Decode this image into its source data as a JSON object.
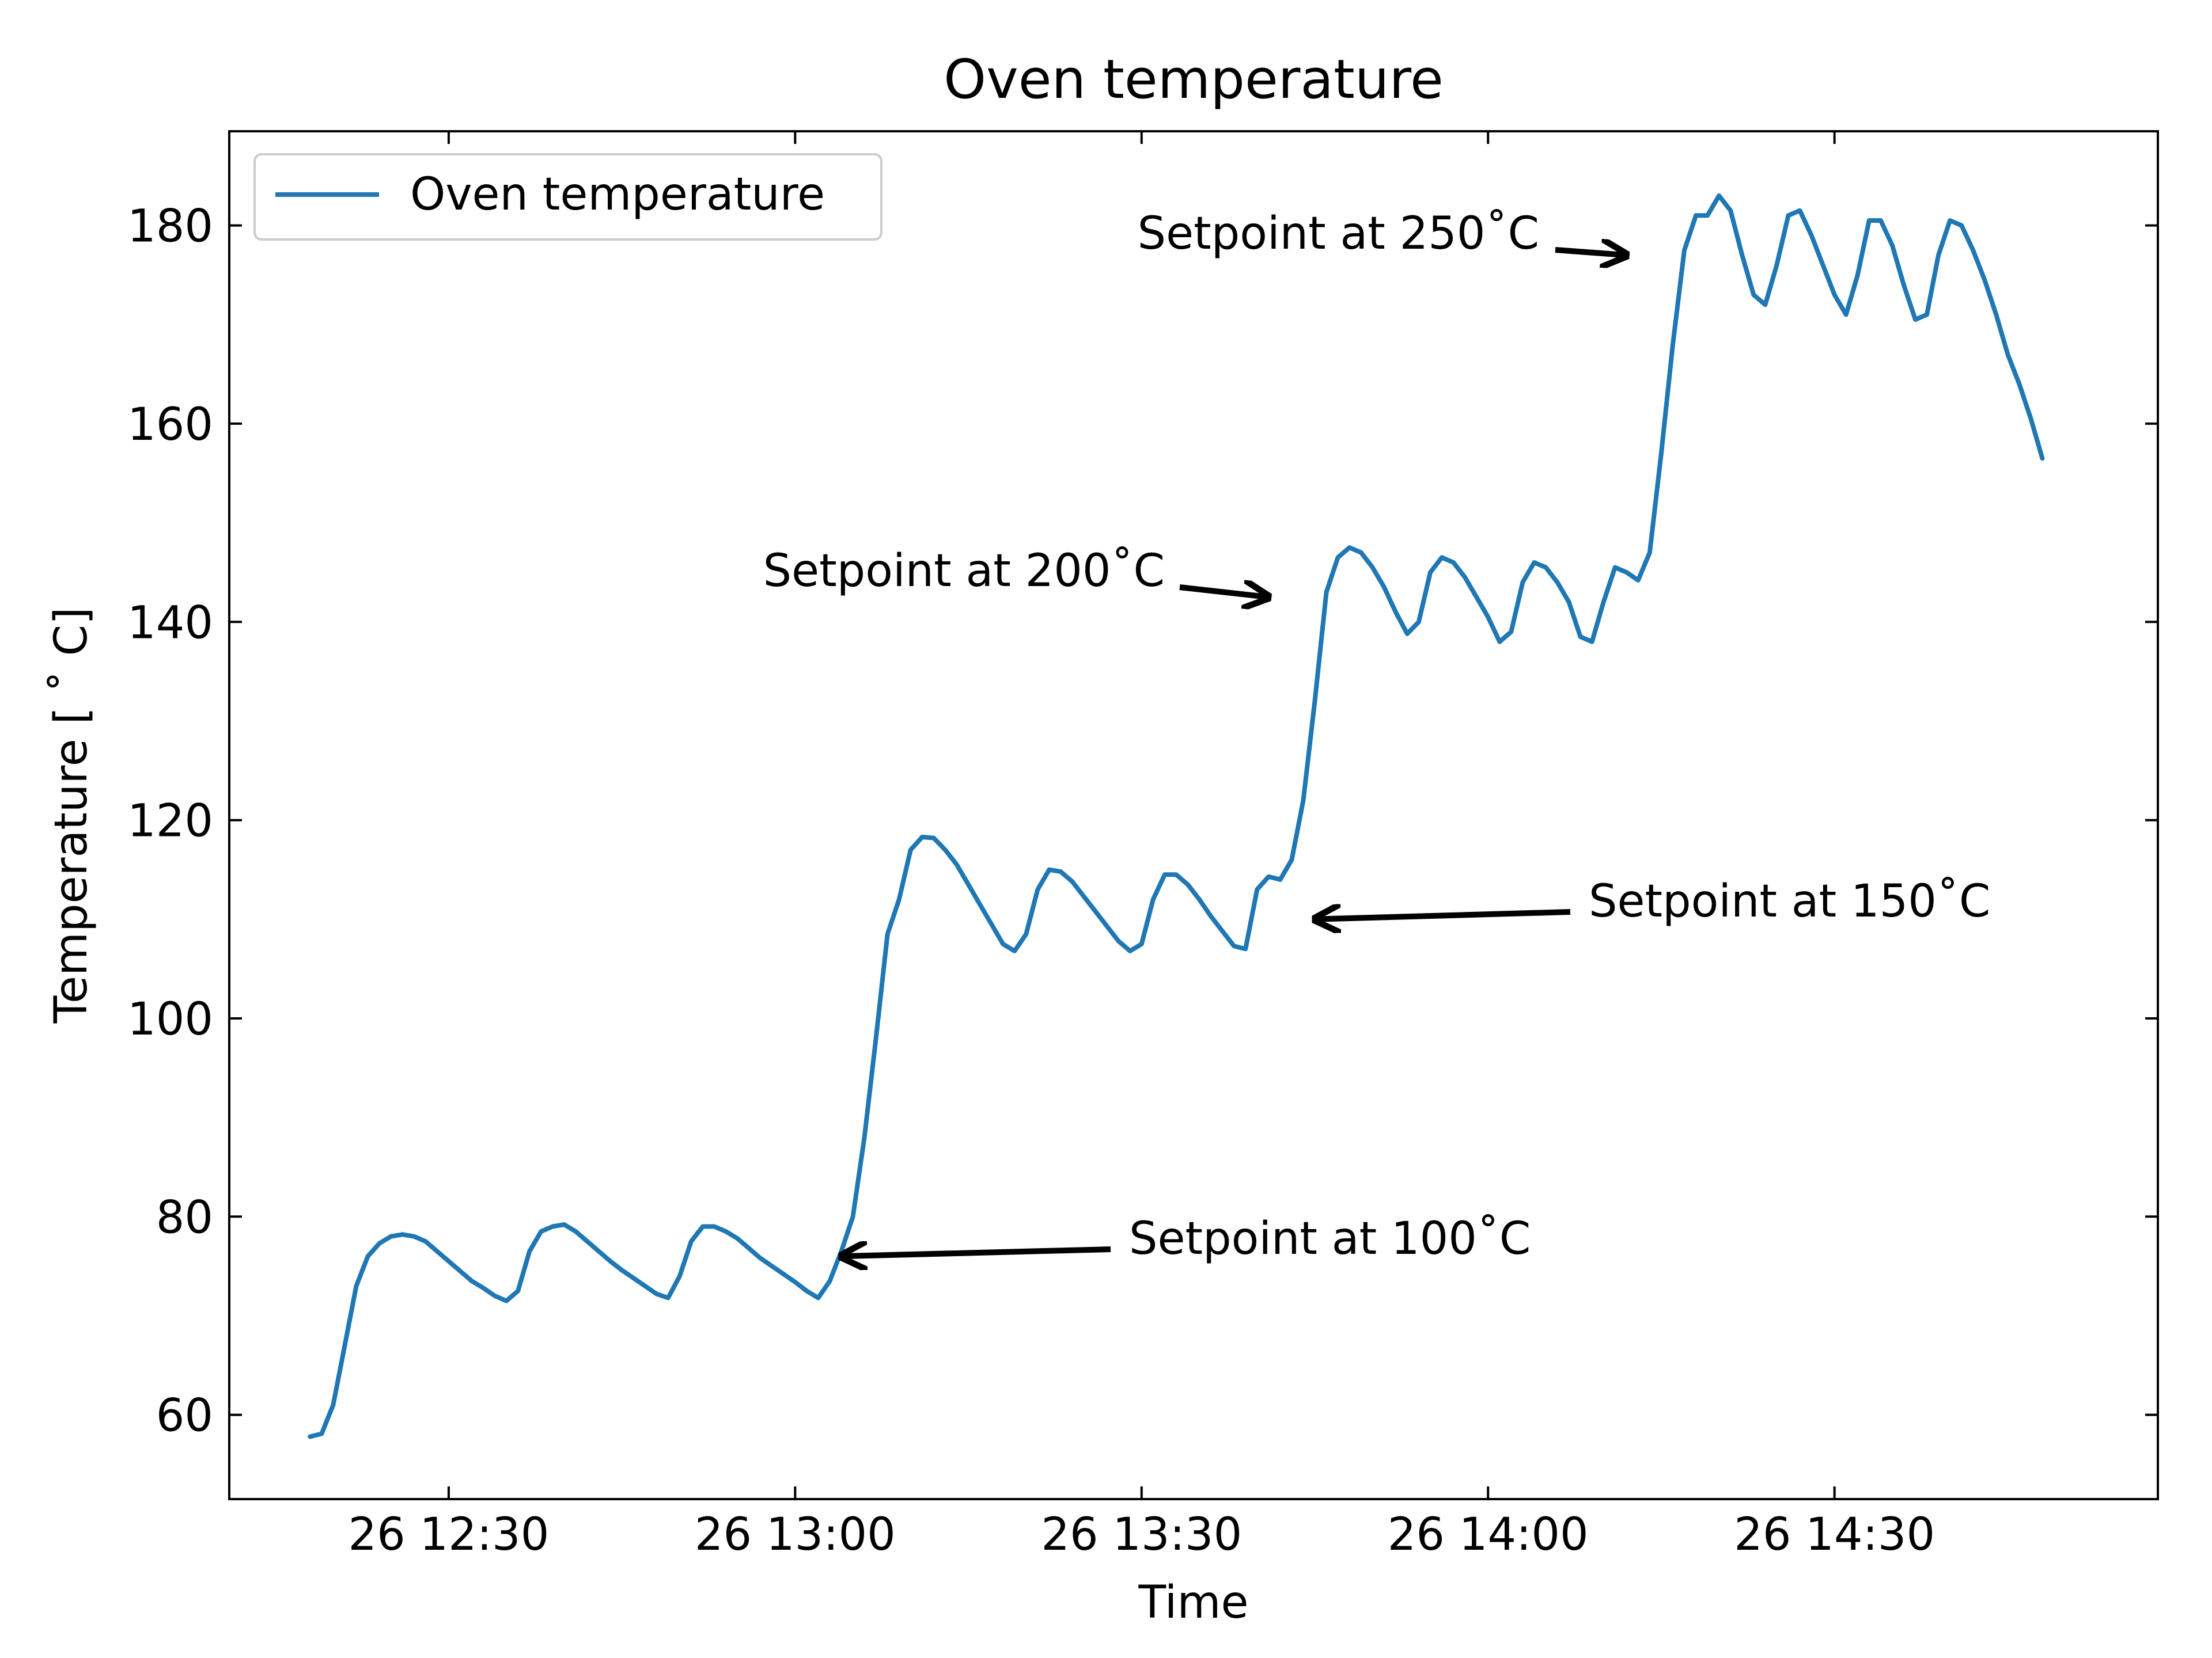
{
  "chart_data": {
    "type": "line",
    "title": "Oven temperature",
    "xlabel": "Time",
    "ylabel": "Temperature [$^\\circ$C]",
    "ylabel_display": "Temperature [ ˚ C]",
    "xlim": [
      "26 12:11",
      "26 14:58"
    ],
    "ylim": [
      51.5,
      189.5
    ],
    "grid": false,
    "legend_position": "upper left",
    "x_ticks": [
      {
        "value": "26 12:30",
        "label": "26 12:30"
      },
      {
        "value": "26 13:00",
        "label": "26 13:00"
      },
      {
        "value": "26 13:30",
        "label": "26 13:30"
      },
      {
        "value": "26 14:00",
        "label": "26 14:00"
      },
      {
        "value": "26 14:30",
        "label": "26 14:30"
      }
    ],
    "y_ticks": [
      60,
      80,
      100,
      120,
      140,
      160,
      180
    ],
    "series": [
      {
        "name": "Oven temperature",
        "color": "#1f77b4",
        "points": [
          [
            "26 12:18",
            57.8
          ],
          [
            "26 12:19",
            58.1
          ],
          [
            "26 12:20",
            61.0
          ],
          [
            "26 12:21",
            67.0
          ],
          [
            "26 12:22",
            73.0
          ],
          [
            "26 12:23",
            76.0
          ],
          [
            "26 12:24",
            77.3
          ],
          [
            "26 12:25",
            78.0
          ],
          [
            "26 12:26",
            78.2
          ],
          [
            "26 12:27",
            78.0
          ],
          [
            "26 12:28",
            77.5
          ],
          [
            "26 12:29",
            76.5
          ],
          [
            "26 12:30",
            75.5
          ],
          [
            "26 12:31",
            74.5
          ],
          [
            "26 12:32",
            73.5
          ],
          [
            "26 12:33",
            72.8
          ],
          [
            "26 12:34",
            72.0
          ],
          [
            "26 12:35",
            71.5
          ],
          [
            "26 12:36",
            72.5
          ],
          [
            "26 12:37",
            76.5
          ],
          [
            "26 12:38",
            78.5
          ],
          [
            "26 12:39",
            79.0
          ],
          [
            "26 12:40",
            79.2
          ],
          [
            "26 12:41",
            78.5
          ],
          [
            "26 12:42",
            77.5
          ],
          [
            "26 12:43",
            76.5
          ],
          [
            "26 12:44",
            75.5
          ],
          [
            "26 12:45",
            74.6
          ],
          [
            "26 12:46",
            73.8
          ],
          [
            "26 12:47",
            73.0
          ],
          [
            "26 12:48",
            72.2
          ],
          [
            "26 12:49",
            71.8
          ],
          [
            "26 12:50",
            74.0
          ],
          [
            "26 12:51",
            77.5
          ],
          [
            "26 12:52",
            79.0
          ],
          [
            "26 12:53",
            79.0
          ],
          [
            "26 12:54",
            78.5
          ],
          [
            "26 12:55",
            77.8
          ],
          [
            "26 12:56",
            76.8
          ],
          [
            "26 12:57",
            75.8
          ],
          [
            "26 12:58",
            75.0
          ],
          [
            "26 12:59",
            74.2
          ],
          [
            "26 13:00",
            73.4
          ],
          [
            "26 13:01",
            72.5
          ],
          [
            "26 13:02",
            71.8
          ],
          [
            "26 13:03",
            73.5
          ],
          [
            "26 13:04",
            76.5
          ],
          [
            "26 13:05",
            80.0
          ],
          [
            "26 13:06",
            88.0
          ],
          [
            "26 13:07",
            98.0
          ],
          [
            "26 13:08",
            108.5
          ],
          [
            "26 13:09",
            112.0
          ],
          [
            "26 13:10",
            117.0
          ],
          [
            "26 13:11",
            118.3
          ],
          [
            "26 13:12",
            118.2
          ],
          [
            "26 13:13",
            117.0
          ],
          [
            "26 13:14",
            115.5
          ],
          [
            "26 13:15",
            113.5
          ],
          [
            "26 13:16",
            111.5
          ],
          [
            "26 13:17",
            109.5
          ],
          [
            "26 13:18",
            107.5
          ],
          [
            "26 13:19",
            106.8
          ],
          [
            "26 13:20",
            108.5
          ],
          [
            "26 13:21",
            113.0
          ],
          [
            "26 13:22",
            115.0
          ],
          [
            "26 13:23",
            114.8
          ],
          [
            "26 13:24",
            113.8
          ],
          [
            "26 13:25",
            112.3
          ],
          [
            "26 13:26",
            110.8
          ],
          [
            "26 13:27",
            109.3
          ],
          [
            "26 13:28",
            107.8
          ],
          [
            "26 13:29",
            106.8
          ],
          [
            "26 13:30",
            107.5
          ],
          [
            "26 13:31",
            112.0
          ],
          [
            "26 13:32",
            114.5
          ],
          [
            "26 13:33",
            114.5
          ],
          [
            "26 13:34",
            113.5
          ],
          [
            "26 13:35",
            112.0
          ],
          [
            "26 13:36",
            110.3
          ],
          [
            "26 13:37",
            108.8
          ],
          [
            "26 13:38",
            107.3
          ],
          [
            "26 13:39",
            107.0
          ],
          [
            "26 13:40",
            113.0
          ],
          [
            "26 13:41",
            114.3
          ],
          [
            "26 13:42",
            114.0
          ],
          [
            "26 13:43",
            116.0
          ],
          [
            "26 13:44",
            122.0
          ],
          [
            "26 13:45",
            132.0
          ],
          [
            "26 13:46",
            143.0
          ],
          [
            "26 13:47",
            146.5
          ],
          [
            "26 13:48",
            147.5
          ],
          [
            "26 13:49",
            147.0
          ],
          [
            "26 13:50",
            145.5
          ],
          [
            "26 13:51",
            143.5
          ],
          [
            "26 13:52",
            141.0
          ],
          [
            "26 13:53",
            138.8
          ],
          [
            "26 13:54",
            140.0
          ],
          [
            "26 13:55",
            145.0
          ],
          [
            "26 13:56",
            146.5
          ],
          [
            "26 13:57",
            146.0
          ],
          [
            "26 13:58",
            144.5
          ],
          [
            "26 13:59",
            142.5
          ],
          [
            "26 14:00",
            140.5
          ],
          [
            "26 14:01",
            138.0
          ],
          [
            "26 14:02",
            139.0
          ],
          [
            "26 14:03",
            144.0
          ],
          [
            "26 14:04",
            146.0
          ],
          [
            "26 14:05",
            145.5
          ],
          [
            "26 14:06",
            144.0
          ],
          [
            "26 14:07",
            142.0
          ],
          [
            "26 14:08",
            138.5
          ],
          [
            "26 14:09",
            138.0
          ],
          [
            "26 14:10",
            142.0
          ],
          [
            "26 14:11",
            145.5
          ],
          [
            "26 14:12",
            145.0
          ],
          [
            "26 14:13",
            144.2
          ],
          [
            "26 14:14",
            147.0
          ],
          [
            "26 14:15",
            157.0
          ],
          [
            "26 14:16",
            168.0
          ],
          [
            "26 14:17",
            177.5
          ],
          [
            "26 14:18",
            181.0
          ],
          [
            "26 14:19",
            181.0
          ],
          [
            "26 14:20",
            183.0
          ],
          [
            "26 14:21",
            181.5
          ],
          [
            "26 14:22",
            177.0
          ],
          [
            "26 14:23",
            173.0
          ],
          [
            "26 14:24",
            172.0
          ],
          [
            "26 14:25",
            176.0
          ],
          [
            "26 14:26",
            181.0
          ],
          [
            "26 14:27",
            181.5
          ],
          [
            "26 14:28",
            179.0
          ],
          [
            "26 14:29",
            176.0
          ],
          [
            "26 14:30",
            173.0
          ],
          [
            "26 14:31",
            171.0
          ],
          [
            "26 14:32",
            175.0
          ],
          [
            "26 14:33",
            180.5
          ],
          [
            "26 14:34",
            180.5
          ],
          [
            "26 14:35",
            178.0
          ],
          [
            "26 14:36",
            174.0
          ],
          [
            "26 14:37",
            170.5
          ],
          [
            "26 14:38",
            171.0
          ],
          [
            "26 14:39",
            177.0
          ],
          [
            "26 14:40",
            180.5
          ],
          [
            "26 14:41",
            180.0
          ],
          [
            "26 14:42",
            177.5
          ],
          [
            "26 14:43",
            174.5
          ],
          [
            "26 14:44",
            171.0
          ],
          [
            "26 14:45",
            167.0
          ],
          [
            "26 14:46",
            164.0
          ],
          [
            "26 14:47",
            160.5
          ],
          [
            "26 14:48",
            156.5
          ]
        ]
      }
    ],
    "annotations": [
      {
        "text": "Setpoint at 100˚C",
        "target": [
          "26 13:04",
          76.0
        ]
      },
      {
        "text": "Setpoint at 150˚C",
        "target": [
          "26 13:45",
          110.0
        ]
      },
      {
        "text": "Setpoint at 200˚C",
        "target": [
          "26 13:41",
          142.5
        ]
      },
      {
        "text": "Setpoint at 250˚C",
        "target": [
          "26 14:12",
          177.0
        ]
      }
    ]
  }
}
